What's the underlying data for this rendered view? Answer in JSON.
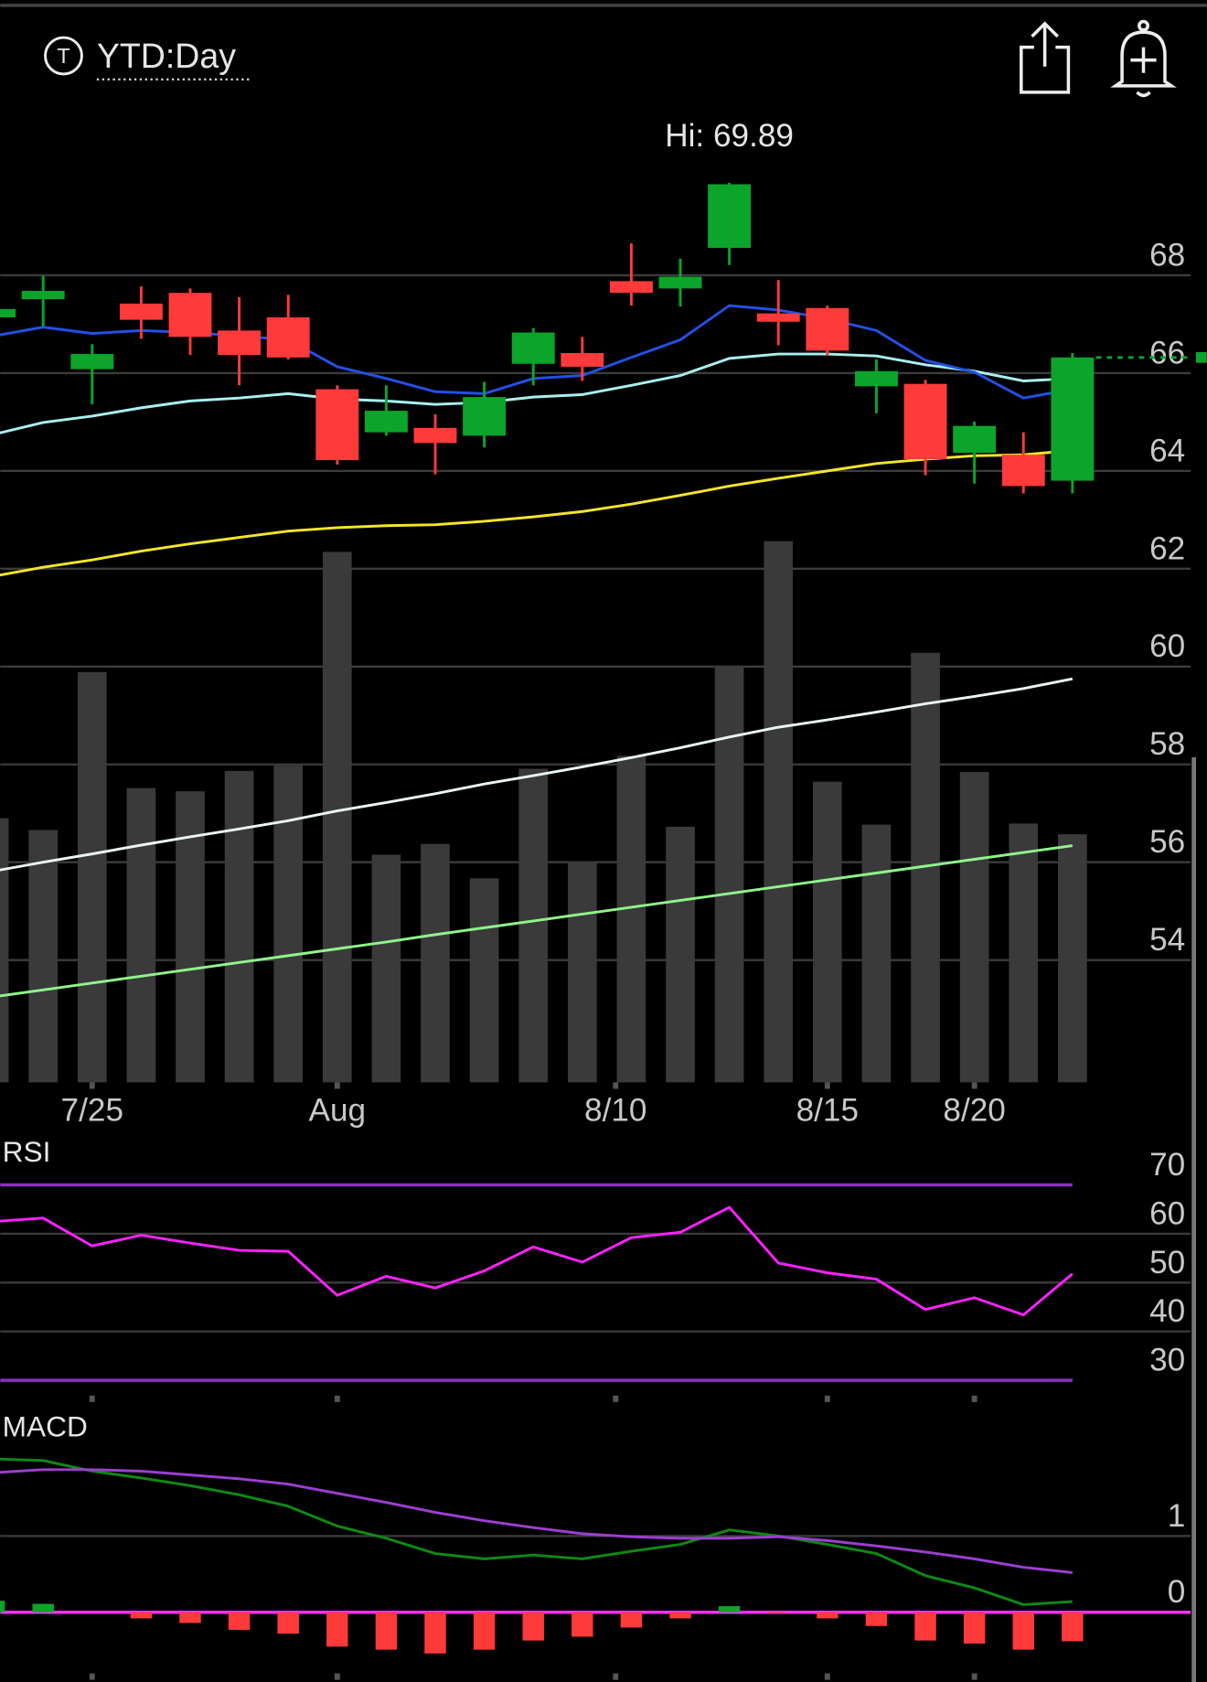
{
  "header": {
    "icon_letter": "T",
    "title": "YTD:Day"
  },
  "chart_data": [
    {
      "type": "candlestick",
      "annotation": "Hi: 69.89",
      "x": [
        0,
        1,
        2,
        3,
        4,
        5,
        6,
        7,
        8,
        9,
        10,
        11,
        12,
        13,
        14,
        15,
        16,
        17,
        18,
        19,
        20,
        21,
        22
      ],
      "xlim": [
        0.125,
        24.74
      ],
      "xticks": [
        {
          "value": 2,
          "label": "7/25"
        },
        {
          "value": 7,
          "label": "Aug"
        },
        {
          "value": 12.68,
          "label": "8/10"
        },
        {
          "value": 17,
          "label": "8/15"
        },
        {
          "value": 20,
          "label": "8/20"
        }
      ],
      "ylim": [
        51.5,
        71.5
      ],
      "yticks": [
        54,
        56,
        58,
        60,
        62,
        64,
        66,
        68
      ],
      "grid": true,
      "up_color": "#0aa52a",
      "down_color": "#fe3a3a",
      "open": [
        67.14,
        67.51,
        66.08,
        67.42,
        67.64,
        66.87,
        67.14,
        65.67,
        64.79,
        64.88,
        64.72,
        66.19,
        66.41,
        67.88,
        67.73,
        68.56,
        67.22,
        67.33,
        65.73,
        65.78,
        64.37,
        64.33,
        63.8
      ],
      "high": [
        67.35,
        67.99,
        66.59,
        67.77,
        67.73,
        67.55,
        67.6,
        65.75,
        65.75,
        65.16,
        65.82,
        66.92,
        66.74,
        68.65,
        68.34,
        69.89,
        67.9,
        67.38,
        66.28,
        65.86,
        65.01,
        64.79,
        66.41
      ],
      "low": [
        67.1,
        66.96,
        65.36,
        66.7,
        66.37,
        65.75,
        66.28,
        64.13,
        64.72,
        63.93,
        64.48,
        65.75,
        65.84,
        67.38,
        67.36,
        68.21,
        66.57,
        66.37,
        65.18,
        63.91,
        63.74,
        63.54,
        63.54
      ],
      "close": [
        67.31,
        67.68,
        66.39,
        67.09,
        66.74,
        66.37,
        66.32,
        64.22,
        65.23,
        64.57,
        65.51,
        66.83,
        66.13,
        67.64,
        67.97,
        69.86,
        67.05,
        66.46,
        66.04,
        64.24,
        64.92,
        63.69,
        66.32
      ],
      "volume": {
        "color": "#3a3a3a",
        "lim": [
          0,
          911
        ],
        "values": [
          246,
          235,
          382,
          274,
          271,
          290,
          295,
          494,
          212,
          222,
          190,
          292,
          206,
          304,
          238,
          388,
          504,
          280,
          240,
          400,
          289,
          241,
          231
        ]
      },
      "series": [
        {
          "color": "#e8f6f6",
          "values": [
            55.82,
            56.0,
            56.17,
            56.35,
            56.52,
            56.68,
            56.85,
            57.05,
            57.22,
            57.4,
            57.6,
            57.77,
            57.95,
            58.14,
            58.34,
            58.56,
            58.76,
            58.91,
            59.07,
            59.24,
            59.39,
            59.55,
            59.75
          ]
        },
        {
          "color": "#8ef58a",
          "values": [
            53.25,
            53.39,
            53.53,
            53.67,
            53.81,
            53.95,
            54.09,
            54.23,
            54.37,
            54.52,
            54.66,
            54.8,
            54.94,
            55.08,
            55.22,
            55.36,
            55.5,
            55.64,
            55.78,
            55.92,
            56.06,
            56.2,
            56.34
          ]
        },
        {
          "color": "#f5e52a",
          "values": [
            61.85,
            62.03,
            62.18,
            62.36,
            62.51,
            62.64,
            62.77,
            62.84,
            62.88,
            62.9,
            62.97,
            63.06,
            63.17,
            63.32,
            63.5,
            63.69,
            63.85,
            64.0,
            64.15,
            64.24,
            64.31,
            64.33,
            64.42
          ]
        },
        {
          "color": "#a8f0f0",
          "values": [
            64.75,
            64.99,
            65.12,
            65.29,
            65.43,
            65.49,
            65.58,
            65.47,
            65.43,
            65.36,
            65.4,
            65.51,
            65.56,
            65.75,
            65.95,
            66.3,
            66.39,
            66.39,
            66.35,
            66.17,
            66.04,
            65.84,
            65.89
          ]
        },
        {
          "color": "#2350e6",
          "values": [
            66.76,
            66.94,
            66.81,
            66.87,
            66.83,
            66.76,
            66.68,
            66.13,
            65.89,
            65.62,
            65.58,
            65.89,
            65.95,
            66.32,
            66.68,
            67.38,
            67.29,
            67.11,
            66.87,
            66.26,
            66.02,
            65.49,
            65.67
          ]
        }
      ]
    },
    {
      "type": "line",
      "title": "RSI",
      "ylim": [
        26,
        80
      ],
      "yticks": [
        30,
        40,
        50,
        60,
        70
      ],
      "bands": [
        30,
        70
      ],
      "band_color": "#8a2fc0",
      "series": [
        {
          "color": "#ff22ff",
          "values": [
            62.5,
            63.2,
            57.5,
            59.7,
            58.1,
            56.6,
            56.4,
            47.4,
            51.3,
            48.9,
            52.4,
            57.3,
            54.2,
            59.2,
            60.3,
            65.4,
            54.0,
            52.0,
            50.7,
            44.5,
            46.9,
            43.4,
            51.8
          ]
        }
      ]
    },
    {
      "type": "macd",
      "title": "MACD",
      "ylim": [
        -0.9,
        2.7
      ],
      "yticks": [
        0,
        1
      ],
      "zero_color": "#ff33ff",
      "series": [
        {
          "color": "#0e8a14",
          "values": [
            2.01,
            1.99,
            1.85,
            1.76,
            1.66,
            1.54,
            1.39,
            1.13,
            0.97,
            0.77,
            0.7,
            0.75,
            0.7,
            0.8,
            0.89,
            1.08,
            1.0,
            0.89,
            0.77,
            0.48,
            0.32,
            0.1,
            0.14
          ]
        },
        {
          "color": "#9b3fd0",
          "values": [
            1.83,
            1.87,
            1.87,
            1.85,
            1.8,
            1.75,
            1.68,
            1.56,
            1.44,
            1.31,
            1.2,
            1.11,
            1.03,
            0.99,
            0.97,
            0.97,
            0.99,
            0.94,
            0.87,
            0.79,
            0.7,
            0.59,
            0.52
          ]
        }
      ],
      "histogram": {
        "up_color": "#0aa52a",
        "down_color": "#fe3a3a",
        "values": [
          0.15,
          0.11,
          0,
          -0.08,
          -0.14,
          -0.23,
          -0.28,
          -0.45,
          -0.49,
          -0.54,
          -0.49,
          -0.37,
          -0.32,
          -0.2,
          -0.08,
          0.08,
          -0.01,
          -0.08,
          -0.18,
          -0.37,
          -0.41,
          -0.49,
          -0.38
        ]
      }
    }
  ]
}
